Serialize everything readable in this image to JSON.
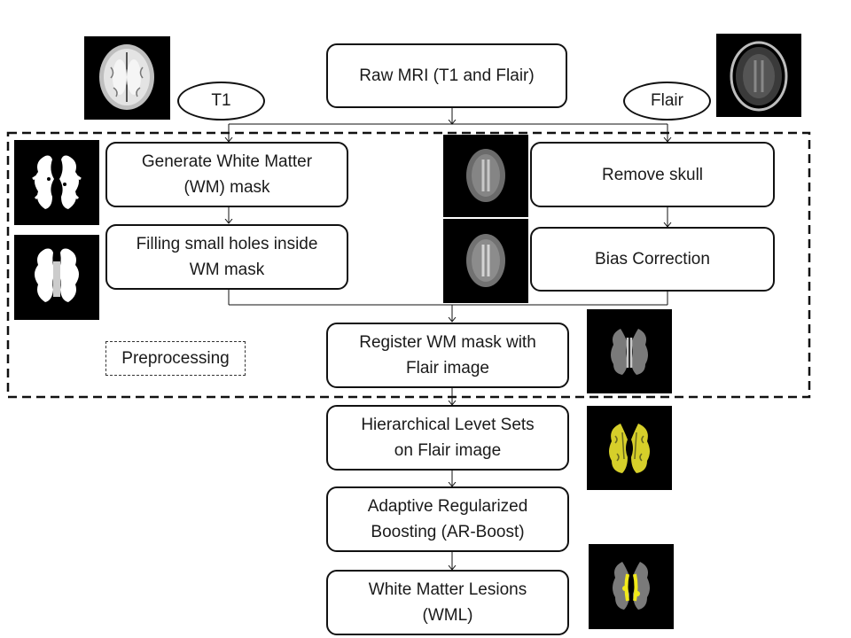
{
  "nodes": {
    "raw_mri": "Raw MRI (T1 and Flair)",
    "t1": "T1",
    "flair": "Flair",
    "generate_wm": "Generate White Matter\n(WM) mask",
    "filling_holes": "Filling small holes inside\nWM mask",
    "remove_skull": "Remove skull",
    "bias_correction": "Bias Correction",
    "register": "Register WM mask with\nFlair image",
    "preprocessing": "Preprocessing",
    "level_sets": "Hierarchical Levet Sets\non Flair image",
    "ar_boost": "Adaptive Regularized\nBoosting (AR-Boost)",
    "wml": "White Matter Lesions\n(WML)"
  },
  "images": {
    "t1_scan": "t1-mri-thumbnail",
    "flair_scan": "flair-mri-thumbnail",
    "wm_mask": "wm-mask-thumbnail",
    "wm_mask_filled": "wm-mask-filled-thumbnail",
    "skull_removed": "skull-removed-thumbnail",
    "bias_corrected": "bias-corrected-thumbnail",
    "registered": "registered-thumbnail",
    "level_set_result": "level-set-thumbnail",
    "lesion_result": "lesion-thumbnail"
  },
  "colors": {
    "lesion_highlight": "#f2ea1a",
    "stroke": "#111111"
  }
}
